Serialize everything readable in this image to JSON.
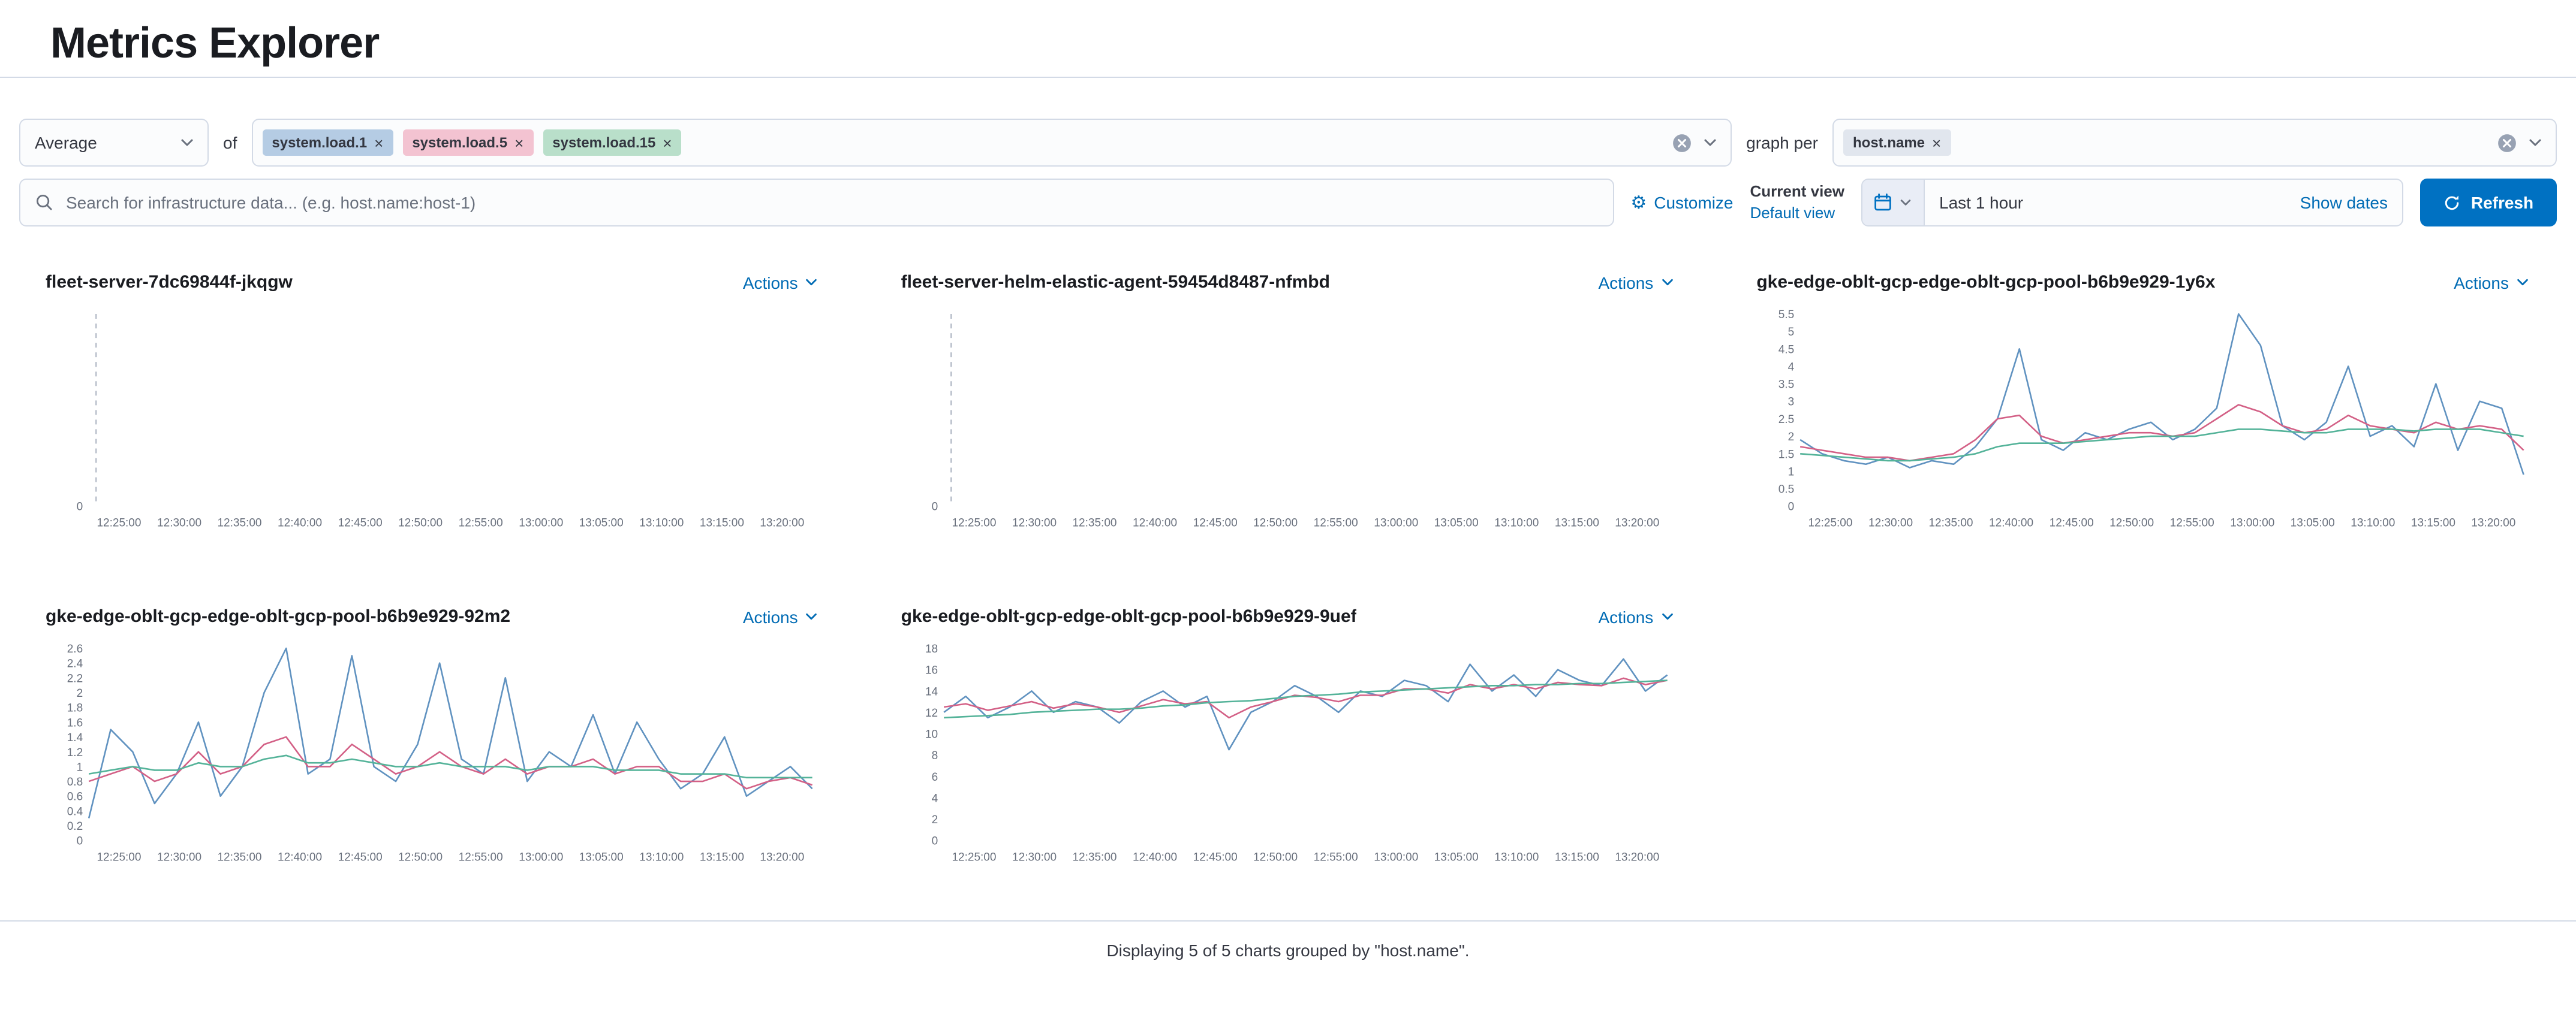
{
  "page": {
    "title": "Metrics Explorer",
    "footer": "Displaying 5 of 5 charts grouped by \"host.name\"."
  },
  "icons": {
    "remove": "×",
    "gear": "⚙"
  },
  "actions_label": "Actions",
  "controls": {
    "aggregation_value": "Average",
    "of_label": "of",
    "metrics": [
      {
        "label": "system.load.1",
        "color": "#b5cce4"
      },
      {
        "label": "system.load.5",
        "color": "#f3c3d1"
      },
      {
        "label": "system.load.15",
        "color": "#b9dfca"
      }
    ],
    "graph_per_label": "graph per",
    "group_by": [
      {
        "label": "host.name",
        "color": "#e1e6ee"
      }
    ],
    "search_placeholder": "Search for infrastructure data... (e.g. host.name:host-1)",
    "customize_label": "Customize",
    "current_view_label": "Current view",
    "default_view_label": "Default view",
    "datepicker_value": "Last 1 hour",
    "show_dates_label": "Show dates",
    "refresh_label": "Refresh"
  },
  "charts_common": {
    "x_labels": [
      "12:25:00",
      "12:30:00",
      "12:35:00",
      "12:40:00",
      "12:45:00",
      "12:50:00",
      "12:55:00",
      "13:00:00",
      "13:05:00",
      "13:10:00",
      "13:15:00",
      "13:20:00"
    ]
  },
  "charts": [
    {
      "title": "fleet-server-7dc69844f-jkqgw",
      "type": "line",
      "empty": true,
      "ylim": [
        0,
        1
      ],
      "yticks": [
        0
      ],
      "series": []
    },
    {
      "title": "fleet-server-helm-elastic-agent-59454d8487-nfmbd",
      "type": "line",
      "empty": true,
      "ylim": [
        0,
        1
      ],
      "yticks": [
        0
      ],
      "series": []
    },
    {
      "title": "gke-edge-oblt-gcp-edge-oblt-gcp-pool-b6b9e929-1y6x",
      "type": "line",
      "ylim": [
        0,
        5.5
      ],
      "yticks": [
        0,
        0.5,
        1,
        1.5,
        2,
        2.5,
        3,
        3.5,
        4,
        4.5,
        5,
        5.5
      ],
      "series": [
        {
          "name": "system.load.1",
          "color": "#6092C0",
          "values": [
            1.9,
            1.5,
            1.3,
            1.2,
            1.4,
            1.1,
            1.3,
            1.2,
            1.7,
            2.5,
            4.5,
            1.9,
            1.6,
            2.1,
            1.9,
            2.2,
            2.4,
            1.9,
            2.2,
            2.8,
            5.5,
            4.6,
            2.3,
            1.9,
            2.4,
            4.0,
            2.0,
            2.3,
            1.7,
            3.5,
            1.6,
            3.0,
            2.8,
            0.9
          ]
        },
        {
          "name": "system.load.5",
          "color": "#D36086",
          "values": [
            1.7,
            1.6,
            1.5,
            1.4,
            1.4,
            1.3,
            1.4,
            1.5,
            1.9,
            2.5,
            2.6,
            2.0,
            1.8,
            1.9,
            2.0,
            2.1,
            2.1,
            2.0,
            2.1,
            2.5,
            2.9,
            2.7,
            2.3,
            2.1,
            2.2,
            2.6,
            2.3,
            2.2,
            2.1,
            2.4,
            2.2,
            2.3,
            2.2,
            1.6
          ]
        },
        {
          "name": "system.load.15",
          "color": "#54B399",
          "values": [
            1.5,
            1.45,
            1.4,
            1.35,
            1.3,
            1.3,
            1.35,
            1.4,
            1.5,
            1.7,
            1.8,
            1.8,
            1.8,
            1.85,
            1.9,
            1.95,
            2.0,
            2.0,
            2.0,
            2.1,
            2.2,
            2.2,
            2.15,
            2.1,
            2.1,
            2.2,
            2.2,
            2.2,
            2.15,
            2.2,
            2.2,
            2.2,
            2.1,
            2.0
          ]
        }
      ]
    },
    {
      "title": "gke-edge-oblt-gcp-edge-oblt-gcp-pool-b6b9e929-92m2",
      "type": "line",
      "ylim": [
        0,
        2.6
      ],
      "yticks": [
        0,
        0.2,
        0.4,
        0.6,
        0.8,
        1,
        1.2,
        1.4,
        1.6,
        1.8,
        2,
        2.2,
        2.4,
        2.6
      ],
      "series": [
        {
          "name": "system.load.1",
          "color": "#6092C0",
          "values": [
            0.3,
            1.5,
            1.2,
            0.5,
            0.9,
            1.6,
            0.6,
            1.0,
            2.0,
            2.6,
            0.9,
            1.1,
            2.5,
            1.0,
            0.8,
            1.3,
            2.4,
            1.1,
            0.9,
            2.2,
            0.8,
            1.2,
            1.0,
            1.7,
            0.9,
            1.6,
            1.1,
            0.7,
            0.9,
            1.4,
            0.6,
            0.8,
            1.0,
            0.7
          ]
        },
        {
          "name": "system.load.5",
          "color": "#D36086",
          "values": [
            0.8,
            0.9,
            1.0,
            0.8,
            0.9,
            1.2,
            0.9,
            1.0,
            1.3,
            1.4,
            1.0,
            1.0,
            1.3,
            1.1,
            0.9,
            1.0,
            1.2,
            1.0,
            0.9,
            1.1,
            0.9,
            1.0,
            1.0,
            1.1,
            0.9,
            1.0,
            1.0,
            0.8,
            0.8,
            0.9,
            0.7,
            0.8,
            0.85,
            0.75
          ]
        },
        {
          "name": "system.load.15",
          "color": "#54B399",
          "values": [
            0.9,
            0.95,
            1.0,
            0.95,
            0.95,
            1.05,
            1.0,
            1.0,
            1.1,
            1.15,
            1.05,
            1.05,
            1.1,
            1.05,
            1.0,
            1.0,
            1.05,
            1.0,
            1.0,
            1.0,
            0.95,
            1.0,
            1.0,
            1.0,
            0.95,
            0.95,
            0.95,
            0.9,
            0.9,
            0.9,
            0.85,
            0.85,
            0.85,
            0.85
          ]
        }
      ]
    },
    {
      "title": "gke-edge-oblt-gcp-edge-oblt-gcp-pool-b6b9e929-9uef",
      "type": "line",
      "ylim": [
        0,
        18
      ],
      "yticks": [
        0,
        2,
        4,
        6,
        8,
        10,
        12,
        14,
        16,
        18
      ],
      "series": [
        {
          "name": "system.load.1",
          "color": "#6092C0",
          "values": [
            12,
            13.5,
            11.5,
            12.5,
            14,
            12,
            13,
            12.5,
            11,
            13,
            14,
            12.5,
            13.5,
            8.5,
            12,
            13,
            14.5,
            13.5,
            12,
            14,
            13.5,
            15,
            14.5,
            13,
            16.5,
            14,
            15.5,
            13.5,
            16,
            15,
            14.5,
            17,
            14,
            15.5
          ]
        },
        {
          "name": "system.load.5",
          "color": "#D36086",
          "values": [
            12.5,
            12.8,
            12.2,
            12.6,
            13,
            12.4,
            12.8,
            12.5,
            12,
            12.6,
            13.2,
            12.8,
            13,
            11.5,
            12.5,
            13,
            13.6,
            13.4,
            13,
            13.6,
            13.6,
            14.2,
            14.2,
            13.8,
            14.6,
            14.2,
            14.6,
            14.2,
            14.8,
            14.6,
            14.5,
            15.2,
            14.6,
            15
          ]
        },
        {
          "name": "system.load.15",
          "color": "#54B399",
          "values": [
            11.5,
            11.6,
            11.7,
            11.8,
            12,
            12.1,
            12.2,
            12.3,
            12.3,
            12.4,
            12.6,
            12.7,
            12.9,
            13,
            13.1,
            13.3,
            13.5,
            13.6,
            13.7,
            13.9,
            14,
            14.1,
            14.2,
            14.3,
            14.4,
            14.5,
            14.5,
            14.6,
            14.6,
            14.7,
            14.7,
            14.8,
            14.9,
            15
          ]
        }
      ]
    }
  ]
}
